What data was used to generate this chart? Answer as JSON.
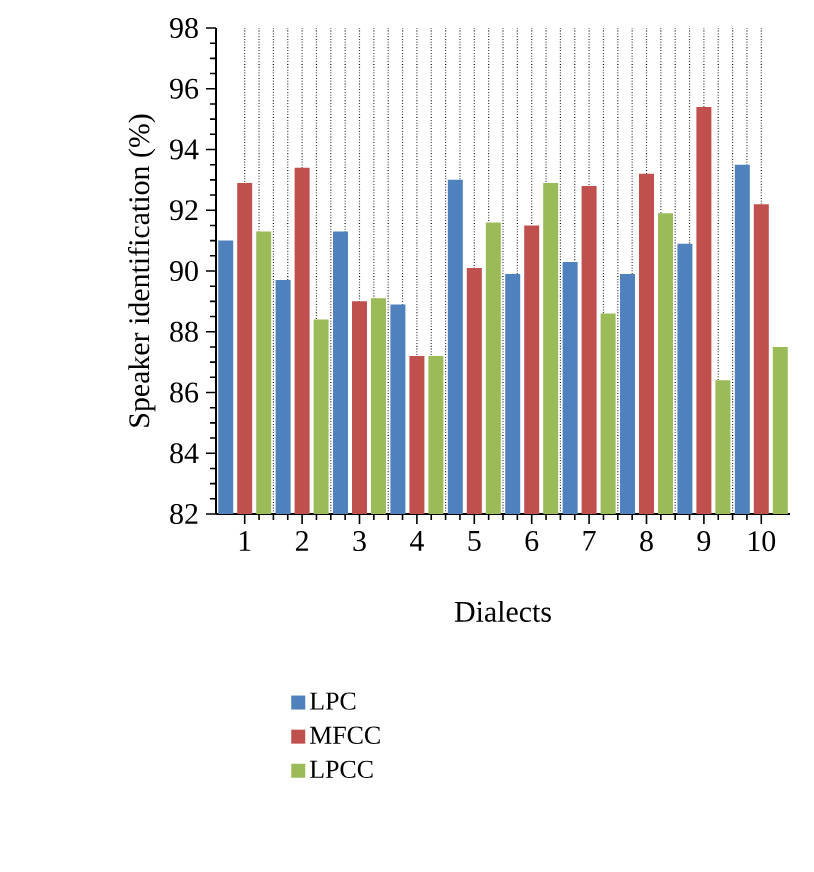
{
  "chart_data": {
    "type": "bar",
    "xlabel": "Dialects",
    "ylabel": "Speaker identification (%)",
    "categories": [
      "1",
      "2",
      "3",
      "4",
      "5",
      "6",
      "7",
      "8",
      "9",
      "10"
    ],
    "series": [
      {
        "name": "LPC",
        "color": "#4f81bd",
        "values": [
          91.0,
          89.7,
          91.3,
          88.9,
          93.0,
          89.9,
          90.3,
          89.9,
          90.9,
          93.5
        ]
      },
      {
        "name": "MFCC",
        "color": "#c0504d",
        "values": [
          92.9,
          93.4,
          89.0,
          87.2,
          90.1,
          91.5,
          92.8,
          93.2,
          95.4,
          92.2
        ]
      },
      {
        "name": "LPCC",
        "color": "#9bbb59",
        "values": [
          91.3,
          88.4,
          89.1,
          87.2,
          91.6,
          92.9,
          88.6,
          91.9,
          86.4,
          87.5
        ]
      }
    ],
    "ylim": [
      82,
      98
    ],
    "yticks": [
      82,
      84,
      86,
      88,
      90,
      92,
      94,
      96,
      98
    ],
    "grid": "x",
    "legend": "bottom"
  }
}
